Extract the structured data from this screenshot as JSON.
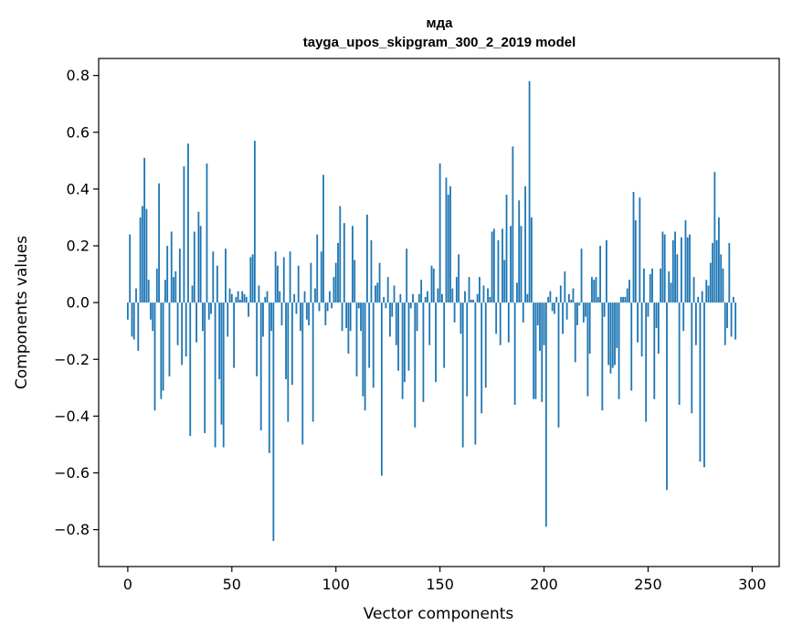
{
  "chart_data": {
    "type": "bar",
    "title": "мда",
    "subtitle": "tayga_upos_skipgram_300_2_2019 model",
    "xlabel": "Vector components",
    "ylabel": "Components values",
    "xlim": [
      -14,
      313
    ],
    "ylim": [
      -0.93,
      0.86
    ],
    "xticks": [
      0,
      50,
      100,
      150,
      200,
      250,
      300
    ],
    "yticks": [
      -0.8,
      -0.6,
      -0.4,
      -0.2,
      0.0,
      0.2,
      0.4,
      0.6,
      0.8
    ],
    "ytick_labels": [
      "−0.8",
      "−0.6",
      "−0.4",
      "−0.2",
      "0.0",
      "0.2",
      "0.4",
      "0.6",
      "0.8"
    ],
    "color": "#1f77b4",
    "values": [
      -0.06,
      0.24,
      -0.12,
      -0.13,
      0.05,
      -0.17,
      0.3,
      0.34,
      0.51,
      0.33,
      0.08,
      -0.06,
      -0.1,
      -0.38,
      0.12,
      0.42,
      -0.34,
      -0.31,
      0.08,
      0.2,
      -0.26,
      0.25,
      0.09,
      0.11,
      -0.15,
      0.19,
      -0.22,
      0.48,
      -0.19,
      0.56,
      -0.47,
      0.06,
      0.25,
      -0.14,
      0.32,
      0.27,
      -0.1,
      -0.46,
      0.49,
      -0.06,
      -0.04,
      0.18,
      -0.51,
      0.13,
      -0.27,
      -0.43,
      -0.51,
      0.19,
      -0.12,
      0.05,
      0.03,
      -0.23,
      0.02,
      0.04,
      0.01,
      0.04,
      0.03,
      0.02,
      -0.05,
      0.16,
      0.17,
      0.57,
      -0.26,
      0.06,
      -0.45,
      -0.12,
      0.02,
      0.04,
      -0.53,
      -0.1,
      -0.84,
      0.18,
      0.13,
      0.04,
      -0.08,
      0.16,
      -0.27,
      -0.42,
      0.18,
      -0.29,
      0.03,
      -0.04,
      0.13,
      -0.1,
      -0.5,
      0.04,
      -0.06,
      -0.08,
      0.14,
      -0.42,
      0.05,
      0.24,
      -0.03,
      0.18,
      0.45,
      -0.08,
      -0.03,
      0.04,
      -0.02,
      0.09,
      0.14,
      0.21,
      0.34,
      -0.1,
      0.28,
      -0.09,
      -0.18,
      -0.1,
      0.27,
      0.15,
      -0.26,
      -0.02,
      -0.1,
      -0.33,
      -0.38,
      0.31,
      -0.23,
      0.22,
      -0.3,
      0.06,
      0.07,
      0.14,
      -0.61,
      0.02,
      -0.02,
      0.09,
      -0.12,
      -0.05,
      0.06,
      -0.15,
      -0.24,
      0.03,
      -0.34,
      -0.28,
      0.19,
      -0.24,
      -0.02,
      0.03,
      -0.44,
      -0.1,
      0.03,
      0.08,
      -0.35,
      0.02,
      0.04,
      -0.15,
      0.13,
      0.12,
      -0.28,
      0.05,
      0.49,
      0.03,
      -0.23,
      0.44,
      0.38,
      0.41,
      0.05,
      -0.07,
      0.09,
      0.17,
      -0.11,
      -0.51,
      0.04,
      -0.33,
      0.09,
      0.01,
      0.01,
      -0.5,
      0.03,
      0.09,
      -0.39,
      0.06,
      -0.3,
      0.05,
      0.02,
      0.25,
      0.26,
      -0.11,
      0.22,
      -0.15,
      0.26,
      0.15,
      0.38,
      -0.14,
      0.27,
      0.55,
      -0.36,
      0.07,
      0.36,
      0.27,
      -0.07,
      0.41,
      0.03,
      0.78,
      0.3,
      -0.34,
      -0.34,
      -0.08,
      -0.17,
      -0.35,
      -0.15,
      -0.79,
      0.02,
      0.04,
      -0.03,
      -0.04,
      0.02,
      -0.44,
      0.06,
      -0.11,
      0.11,
      -0.06,
      0.03,
      0.01,
      0.05,
      -0.21,
      -0.08,
      -0.01,
      0.19,
      -0.07,
      -0.05,
      -0.33,
      -0.18,
      0.09,
      0.08,
      0.09,
      0.02,
      0.2,
      -0.38,
      -0.05,
      0.22,
      -0.22,
      -0.25,
      -0.23,
      -0.22,
      -0.16,
      -0.34,
      0.02,
      0.02,
      0.02,
      0.05,
      0.08,
      -0.31,
      0.39,
      0.29,
      -0.14,
      0.37,
      -0.19,
      0.12,
      -0.42,
      -0.05,
      0.1,
      0.12,
      -0.34,
      -0.09,
      -0.18,
      0.12,
      0.25,
      0.24,
      -0.66,
      0.11,
      0.07,
      0.22,
      0.25,
      0.17,
      -0.36,
      0.23,
      -0.1,
      0.29,
      0.23,
      0.24,
      -0.39,
      0.09,
      -0.15,
      0.02,
      -0.56,
      0.04,
      -0.58,
      0.08,
      0.06,
      0.14,
      0.21,
      0.46,
      0.22,
      0.3,
      0.17,
      0.12,
      -0.15,
      -0.09,
      0.21,
      -0.12,
      0.02,
      -0.13
    ]
  }
}
